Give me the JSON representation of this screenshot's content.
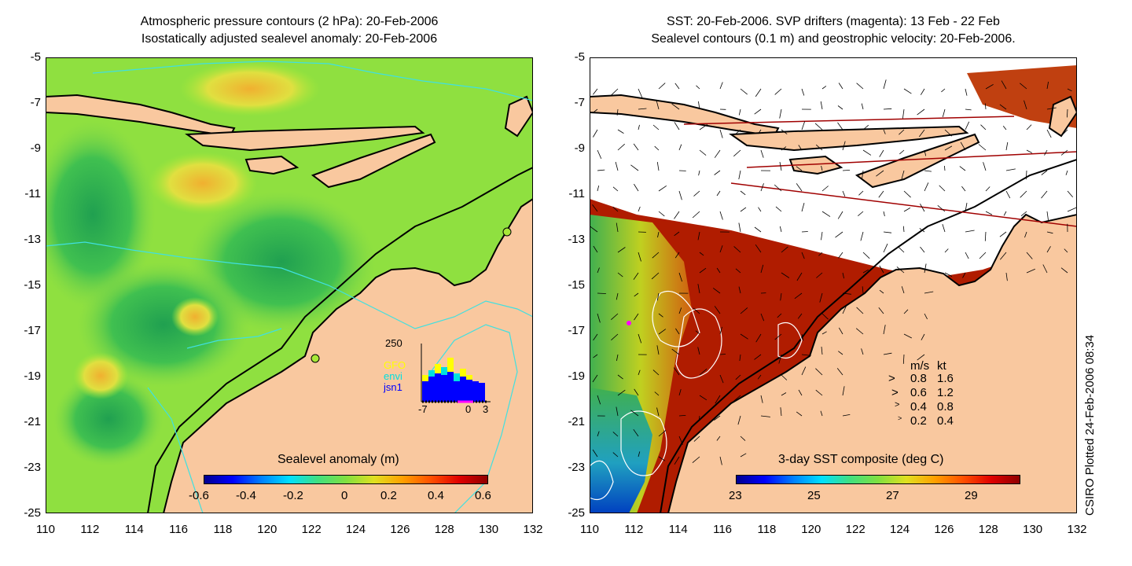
{
  "left_panel": {
    "title_line1": "Atmospheric pressure contours (2 hPa): 20-Feb-2006",
    "title_line2": "Isostatically adjusted sealevel anomaly: 20-Feb-2006",
    "colorbar_label": "Sealevel anomaly (m)",
    "colorbar_ticks": [
      "-0.6",
      "-0.4",
      "-0.2",
      "0",
      "0.2",
      "0.4",
      "0.6"
    ],
    "inset": {
      "ymax_label": "250",
      "legend": [
        {
          "label": "GFO",
          "color": "#ffff00"
        },
        {
          "label": "envi",
          "color": "#00e0e0"
        },
        {
          "label": "jsn1",
          "color": "#0000ff"
        }
      ],
      "x_ticks": [
        "-7",
        "0",
        "3"
      ]
    }
  },
  "right_panel": {
    "title_line1": "SST: 20-Feb-2006. SVP drifters (magenta): 13 Feb - 22 Feb",
    "title_line2": "Sealevel contours (0.1 m) and geostrophic velocity: 20-Feb-2006.",
    "colorbar_label": "3-day SST composite (deg C)",
    "colorbar_ticks": [
      "23",
      "25",
      "27",
      "29"
    ],
    "velocity_legend": {
      "header_ms": "m/s",
      "header_kt": "kt",
      "rows": [
        {
          "ms": "0.8",
          "kt": "1.6"
        },
        {
          "ms": "0.6",
          "kt": "1.2"
        },
        {
          "ms": "0.4",
          "kt": "0.8"
        },
        {
          "ms": "0.2",
          "kt": "0.4"
        }
      ]
    }
  },
  "axes": {
    "x_ticks": [
      "110",
      "112",
      "114",
      "116",
      "118",
      "120",
      "122",
      "124",
      "126",
      "128",
      "130",
      "132"
    ],
    "y_ticks": [
      "-5",
      "-7",
      "-9",
      "-11",
      "-13",
      "-15",
      "-17",
      "-19",
      "-21",
      "-23",
      "-25"
    ]
  },
  "credit": "CSIRO Plotted 24-Feb-2006 08:34",
  "colors": {
    "land": "#f9c89f",
    "coast": "#000000",
    "ssh_main": "#8fe040",
    "ssh_low": "#2eb050",
    "ssh_high": "#e8d030",
    "sst_warm": "#b01c00",
    "sst_cool": "#33aa55",
    "cloud": "#ffffff",
    "contour_cyan": "#40e0e0"
  }
}
